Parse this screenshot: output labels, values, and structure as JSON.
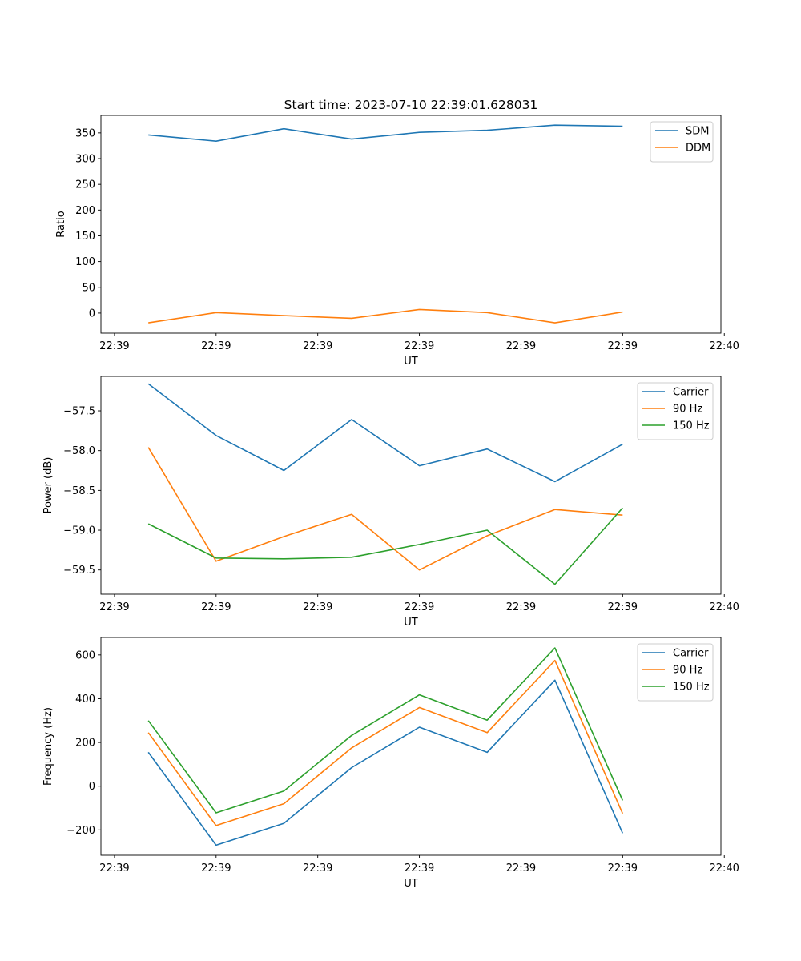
{
  "figure_title": "Start time: 2023-07-10 22:39:01.628031",
  "colors": {
    "blue": "#1f77b4",
    "orange": "#ff7f0e",
    "green": "#2ca02c"
  },
  "chart_data": [
    {
      "type": "line",
      "title": "Start time: 2023-07-10 22:39:01.628031",
      "xlabel": "UT",
      "ylabel": "Ratio",
      "x": [
        1,
        2,
        3,
        4,
        5,
        6,
        7,
        8
      ],
      "xlim": [
        0.3,
        9.45
      ],
      "x_tick_positions": [
        0.5,
        2.0,
        3.5,
        5.0,
        6.5,
        8.0,
        9.5
      ],
      "x_tick_labels": [
        "22:39",
        "22:39",
        "22:39",
        "22:39",
        "22:39",
        "22:39",
        "22:40"
      ],
      "ylim": [
        -39,
        384
      ],
      "y_ticks": [
        0,
        50,
        100,
        150,
        200,
        250,
        300,
        350
      ],
      "y_tick_labels": [
        "0",
        "50",
        "100",
        "150",
        "200",
        "250",
        "300",
        "350"
      ],
      "legend_position": "top-right",
      "series": [
        {
          "name": "SDM",
          "color": "#1f77b4",
          "values": [
            346,
            334,
            358,
            338,
            351,
            355,
            365,
            363
          ]
        },
        {
          "name": "DDM",
          "color": "#ff7f0e",
          "values": [
            -19,
            1,
            -5,
            -10,
            7,
            1,
            -19,
            2
          ]
        }
      ]
    },
    {
      "type": "line",
      "xlabel": "UT",
      "ylabel": "Power (dB)",
      "x": [
        1,
        2,
        3,
        4,
        5,
        6,
        7,
        8
      ],
      "xlim": [
        0.3,
        9.45
      ],
      "x_tick_positions": [
        0.5,
        2.0,
        3.5,
        5.0,
        6.5,
        8.0,
        9.5
      ],
      "x_tick_labels": [
        "22:39",
        "22:39",
        "22:39",
        "22:39",
        "22:39",
        "22:39",
        "22:40"
      ],
      "ylim": [
        -59.805,
        -57.067
      ],
      "y_ticks": [
        -59.5,
        -59.0,
        -58.5,
        -58.0,
        -57.5
      ],
      "y_tick_labels": [
        "−59.5",
        "−59.0",
        "−58.5",
        "−58.0",
        "−57.5"
      ],
      "legend_position": "top-right",
      "series": [
        {
          "name": "Carrier",
          "color": "#1f77b4",
          "values": [
            -57.16,
            -57.81,
            -58.25,
            -57.61,
            -58.19,
            -57.98,
            -58.39,
            -57.92
          ]
        },
        {
          "name": "90 Hz",
          "color": "#ff7f0e",
          "values": [
            -57.96,
            -59.39,
            -59.08,
            -58.8,
            -59.5,
            -59.07,
            -58.74,
            -58.81
          ]
        },
        {
          "name": "150 Hz",
          "color": "#2ca02c",
          "values": [
            -58.92,
            -59.35,
            -59.36,
            -59.34,
            -59.18,
            -59.0,
            -59.68,
            -58.72
          ]
        }
      ]
    },
    {
      "type": "line",
      "xlabel": "UT",
      "ylabel": "Frequency (Hz)",
      "x": [
        1,
        2,
        3,
        4,
        5,
        6,
        7,
        8
      ],
      "xlim": [
        0.3,
        9.45
      ],
      "x_tick_positions": [
        0.5,
        2.0,
        3.5,
        5.0,
        6.5,
        8.0,
        9.5
      ],
      "x_tick_labels": [
        "22:39",
        "22:39",
        "22:39",
        "22:39",
        "22:39",
        "22:39",
        "22:40"
      ],
      "ylim": [
        -316,
        680
      ],
      "y_ticks": [
        -200,
        0,
        200,
        400,
        600
      ],
      "y_tick_labels": [
        "−200",
        "0",
        "200",
        "400",
        "600"
      ],
      "legend_position": "top-right",
      "series": [
        {
          "name": "Carrier",
          "color": "#1f77b4",
          "values": [
            155,
            -270,
            -170,
            85,
            270,
            155,
            485,
            -215
          ]
        },
        {
          "name": "90 Hz",
          "color": "#ff7f0e",
          "values": [
            245,
            -180,
            -80,
            175,
            360,
            245,
            575,
            -125
          ]
        },
        {
          "name": "150 Hz",
          "color": "#2ca02c",
          "values": [
            300,
            -122,
            -22,
            232,
            418,
            302,
            632,
            -65
          ]
        }
      ]
    }
  ]
}
